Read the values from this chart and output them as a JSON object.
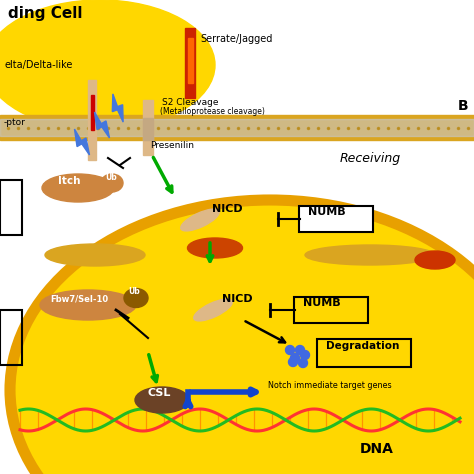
{
  "bg_color": "#ffffff",
  "yellow_blob": "#FFD700",
  "membrane_gold": "#DAA520",
  "membrane_gray": "#B8B8B8",
  "cell_fill": "#FFD700",
  "cell_border": "#DAA520",
  "orange_ellipse": "#CD853F",
  "dark_brown": "#6B4226",
  "green_arrow": "#00AA00",
  "blue_lightning": "#4477DD",
  "red_bar": "#CC2200",
  "orange_bar": "#FF6600",
  "blue_dots": "#4169E1",
  "dna_red": "#FF3333",
  "dna_green": "#22BB22",
  "dna_orange": "#FF8800",
  "labels": {
    "ding_cell": "ding Cell",
    "delta": "elta/Delta-like",
    "serrate": "Serrate/Jagged",
    "s2": "S2 Cleavage",
    "metal": "(Metalloprotease cleavage)",
    "presenilin": "Presenilin",
    "receptor": "-ptor",
    "receiving": "Receiving",
    "itch": "Itch",
    "ub": "Ub",
    "nicd": "NICD",
    "numb": "NUMB",
    "fbw7": "Fbw7/Sel-10",
    "degradation": "Degradation",
    "csl": "CSL",
    "notch_genes": "Notch immediate target genes",
    "dna": "DNA",
    "B": "B"
  }
}
